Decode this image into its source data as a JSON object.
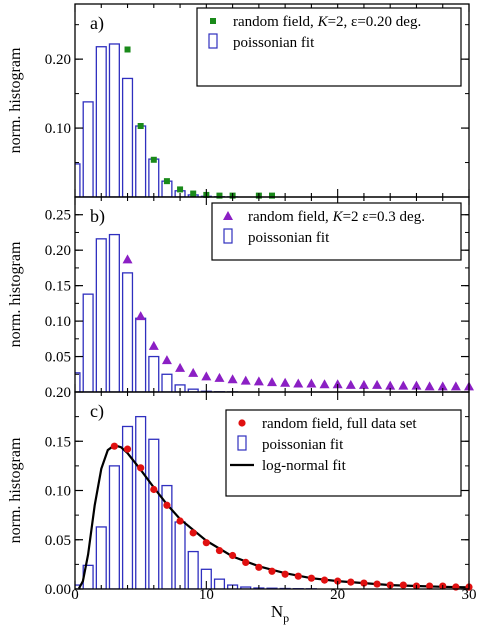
{
  "figure": {
    "xlabel": "N",
    "xlabel_sub": "p",
    "x_ticks": [
      0,
      10,
      20,
      30
    ]
  },
  "chart_data": [
    {
      "type": "bar",
      "panel_label": "a)",
      "ylabel": "norm. histogram",
      "xlim": [
        0,
        30
      ],
      "ylim": [
        0,
        0.28
      ],
      "y_ticks": [
        {
          "v": 0.1,
          "label": "0.10"
        },
        {
          "v": 0.2,
          "label": "0.20"
        }
      ],
      "legend_placement": "top-right",
      "bar_color": "#2f2fbf",
      "marker_color": "#1a8a1a",
      "marker": "square",
      "legend": {
        "marker_label_parts": [
          "random field, ",
          "K",
          "=2, ε=0.20 deg."
        ],
        "bar_label": "poissonian fit"
      },
      "bars": {
        "x": [
          0,
          1,
          2,
          3,
          4,
          5,
          6,
          7,
          8,
          9,
          10,
          11,
          12
        ],
        "values": [
          0.048,
          0.138,
          0.218,
          0.222,
          0.172,
          0.103,
          0.055,
          0.023,
          0.009,
          0.003,
          0.001,
          0.0003,
          0.0001
        ]
      },
      "points": {
        "x": [
          4,
          5,
          6,
          7,
          8,
          9,
          10,
          11,
          12,
          14,
          15
        ],
        "values": [
          0.214,
          0.103,
          0.054,
          0.023,
          0.011,
          0.005,
          0.003,
          0.002,
          0.002,
          0.002,
          0.002
        ]
      }
    },
    {
      "type": "bar",
      "panel_label": "b)",
      "ylabel": "norm. histogram",
      "xlim": [
        0,
        30
      ],
      "ylim": [
        0,
        0.275
      ],
      "y_ticks": [
        {
          "v": 0.05,
          "label": "0.05"
        },
        {
          "v": 0.1,
          "label": "0.10"
        },
        {
          "v": 0.15,
          "label": "0.15"
        },
        {
          "v": 0.2,
          "label": "0.20"
        },
        {
          "v": 0.25,
          "label": "0.25"
        }
      ],
      "legend_placement": "top-right",
      "bar_color": "#2f2fbf",
      "marker_color": "#8b1fc4",
      "marker": "triangle",
      "legend": {
        "marker_label_parts": [
          "random field, ",
          "K",
          "=2 ε=0.3 deg."
        ],
        "bar_label": "poissonian fit"
      },
      "bars": {
        "x": [
          0,
          1,
          2,
          3,
          4,
          5,
          6,
          7,
          8,
          9,
          10,
          11,
          12
        ],
        "values": [
          0.027,
          0.138,
          0.216,
          0.222,
          0.168,
          0.104,
          0.05,
          0.025,
          0.01,
          0.004,
          0.001,
          0.0003,
          0.0001
        ]
      },
      "points": {
        "x": [
          4,
          5,
          6,
          7,
          8,
          9,
          10,
          11,
          12,
          13,
          14,
          15,
          16,
          17,
          18,
          19,
          20,
          21,
          22,
          23,
          24,
          25,
          26,
          27,
          28,
          29,
          30
        ],
        "values": [
          0.187,
          0.107,
          0.065,
          0.045,
          0.034,
          0.027,
          0.022,
          0.02,
          0.018,
          0.016,
          0.015,
          0.014,
          0.013,
          0.012,
          0.012,
          0.011,
          0.011,
          0.01,
          0.01,
          0.01,
          0.009,
          0.009,
          0.009,
          0.008,
          0.008,
          0.008,
          0.008
        ]
      }
    },
    {
      "type": "bar",
      "panel_label": "c)",
      "ylabel": "norm. histogram",
      "xlim": [
        0,
        30
      ],
      "ylim": [
        0,
        0.2
      ],
      "y_ticks": [
        {
          "v": 0,
          "label": "0.00"
        },
        {
          "v": 0.05,
          "label": "0.05"
        },
        {
          "v": 0.1,
          "label": "0.10"
        },
        {
          "v": 0.15,
          "label": "0.15"
        },
        {
          "v": 0.2,
          "label": "0.20"
        }
      ],
      "legend_placement": "top-right",
      "bar_color": "#2f2fbf",
      "marker_color": "#e01010",
      "marker": "circle",
      "curve_color": "#000000",
      "legend": {
        "marker_label_parts": [
          "random field, full data set"
        ],
        "bar_label": "poissonian fit",
        "curve_label": "log-normal fit"
      },
      "bars": {
        "x": [
          0,
          1,
          2,
          3,
          4,
          5,
          6,
          7,
          8,
          9,
          10,
          11,
          12,
          13,
          14,
          15,
          16,
          17,
          18
        ],
        "values": [
          0.004,
          0.024,
          0.063,
          0.125,
          0.165,
          0.175,
          0.152,
          0.105,
          0.068,
          0.038,
          0.02,
          0.01,
          0.004,
          0.002,
          0.001,
          0.0008,
          0.0005,
          0.0003,
          0.0002
        ]
      },
      "points": {
        "x": [
          3,
          4,
          5,
          6,
          7,
          8,
          9,
          10,
          11,
          12,
          13,
          14,
          15,
          16,
          17,
          18,
          19,
          20,
          21,
          22,
          23,
          24,
          25,
          26,
          27,
          28,
          29,
          30
        ],
        "values": [
          0.145,
          0.142,
          0.123,
          0.101,
          0.085,
          0.069,
          0.057,
          0.047,
          0.039,
          0.034,
          0.027,
          0.022,
          0.018,
          0.015,
          0.013,
          0.011,
          0.009,
          0.008,
          0.007,
          0.006,
          0.005,
          0.004,
          0.004,
          0.003,
          0.003,
          0.003,
          0.002,
          0.002
        ]
      },
      "curve": {
        "x": [
          0.3,
          0.6,
          1.0,
          1.5,
          2.0,
          2.5,
          3.0,
          3.5,
          4.0,
          5.0,
          6.0,
          7.0,
          8.0,
          10.0,
          12.0,
          14.0,
          16.0,
          18.0,
          20.0,
          22.0,
          24.0,
          26.0,
          28.0,
          30.0
        ],
        "values": [
          0.0005,
          0.008,
          0.035,
          0.085,
          0.122,
          0.141,
          0.146,
          0.144,
          0.138,
          0.121,
          0.103,
          0.086,
          0.071,
          0.049,
          0.033,
          0.023,
          0.016,
          0.011,
          0.008,
          0.006,
          0.004,
          0.003,
          0.0022,
          0.0016
        ]
      }
    }
  ]
}
